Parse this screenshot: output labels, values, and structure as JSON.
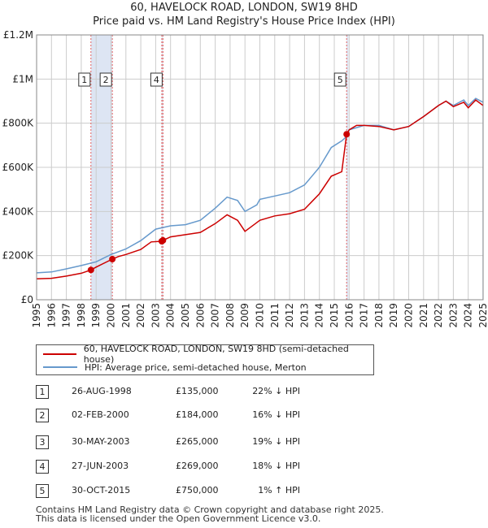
{
  "title_line1": "60, HAVELOCK ROAD, LONDON, SW19 8HD",
  "title_line2": "Price paid vs. HM Land Registry's House Price Index (HPI)",
  "colors": {
    "price": "#cc0000",
    "hpi": "#6699cc",
    "shade": "#dde5f3",
    "marker": "#cc0000",
    "vline": "#e06060"
  },
  "chart_data": {
    "type": "line",
    "x_range": [
      1995,
      2025
    ],
    "y_range": [
      0,
      1200000
    ],
    "y_ticks": [
      {
        "value": 0,
        "label": "£0"
      },
      {
        "value": 200000,
        "label": "£200K"
      },
      {
        "value": 400000,
        "label": "£400K"
      },
      {
        "value": 600000,
        "label": "£600K"
      },
      {
        "value": 800000,
        "label": "£800K"
      },
      {
        "value": 1000000,
        "label": "£1M"
      },
      {
        "value": 1200000,
        "label": "£1.2M"
      }
    ],
    "x_ticks": [
      "1995",
      "1996",
      "1997",
      "1998",
      "1999",
      "2000",
      "2001",
      "2002",
      "2003",
      "2004",
      "2005",
      "2006",
      "2007",
      "2008",
      "2009",
      "2010",
      "2011",
      "2012",
      "2013",
      "2014",
      "2015",
      "2016",
      "2017",
      "2018",
      "2019",
      "2020",
      "2021",
      "2022",
      "2023",
      "2024",
      "2025"
    ],
    "shaded_ranges": [
      [
        1998.65,
        2000.09
      ],
      [
        2003.41,
        2003.49
      ],
      [
        2015.83,
        2015.95
      ],
      [
        2024.95,
        2025.1
      ]
    ],
    "series": [
      {
        "name": "60, HAVELOCK ROAD, LONDON, SW19 8HD (semi-detached house)",
        "points": [
          [
            1995,
            95000
          ],
          [
            1996,
            97000
          ],
          [
            1997,
            107000
          ],
          [
            1998,
            120000
          ],
          [
            1998.65,
            135000
          ],
          [
            1999,
            148000
          ],
          [
            2000.09,
            184000
          ],
          [
            2000.5,
            196000
          ],
          [
            2001,
            205000
          ],
          [
            2002,
            228000
          ],
          [
            2002.7,
            262000
          ],
          [
            2003.41,
            265000
          ],
          [
            2003.49,
            269000
          ],
          [
            2004,
            285000
          ],
          [
            2005,
            295000
          ],
          [
            2006,
            305000
          ],
          [
            2007,
            345000
          ],
          [
            2007.8,
            385000
          ],
          [
            2008.5,
            360000
          ],
          [
            2009,
            310000
          ],
          [
            2009.7,
            345000
          ],
          [
            2010,
            360000
          ],
          [
            2011,
            380000
          ],
          [
            2012,
            390000
          ],
          [
            2013,
            410000
          ],
          [
            2014,
            480000
          ],
          [
            2014.8,
            560000
          ],
          [
            2015.5,
            580000
          ],
          [
            2015.83,
            750000
          ],
          [
            2016,
            770000
          ],
          [
            2016.5,
            790000
          ],
          [
            2017,
            790000
          ],
          [
            2018,
            785000
          ],
          [
            2019,
            770000
          ],
          [
            2020,
            785000
          ],
          [
            2021,
            830000
          ],
          [
            2022,
            880000
          ],
          [
            2022.5,
            900000
          ],
          [
            2023,
            875000
          ],
          [
            2023.7,
            895000
          ],
          [
            2024,
            870000
          ],
          [
            2024.5,
            905000
          ],
          [
            2025,
            880000
          ]
        ]
      },
      {
        "name": "HPI: Average price, semi-detached house, Merton",
        "points": [
          [
            1995,
            122000
          ],
          [
            1996,
            126000
          ],
          [
            1997,
            140000
          ],
          [
            1998,
            155000
          ],
          [
            1999,
            172000
          ],
          [
            2000,
            205000
          ],
          [
            2001,
            230000
          ],
          [
            2002,
            268000
          ],
          [
            2003,
            320000
          ],
          [
            2004,
            335000
          ],
          [
            2005,
            340000
          ],
          [
            2006,
            360000
          ],
          [
            2007,
            415000
          ],
          [
            2007.8,
            465000
          ],
          [
            2008.5,
            450000
          ],
          [
            2009,
            400000
          ],
          [
            2009.8,
            430000
          ],
          [
            2010,
            455000
          ],
          [
            2011,
            470000
          ],
          [
            2012,
            485000
          ],
          [
            2013,
            520000
          ],
          [
            2014,
            600000
          ],
          [
            2014.8,
            690000
          ],
          [
            2015.5,
            720000
          ],
          [
            2015.83,
            740000
          ],
          [
            2016,
            770000
          ],
          [
            2016.5,
            780000
          ],
          [
            2017,
            790000
          ],
          [
            2018,
            790000
          ],
          [
            2019,
            770000
          ],
          [
            2020,
            785000
          ],
          [
            2021,
            830000
          ],
          [
            2022,
            880000
          ],
          [
            2022.5,
            900000
          ],
          [
            2023,
            880000
          ],
          [
            2023.7,
            905000
          ],
          [
            2024,
            880000
          ],
          [
            2024.5,
            912000
          ],
          [
            2025,
            895000
          ]
        ]
      }
    ],
    "sales": [
      {
        "num": "1",
        "x": 1998.65,
        "value": 135000
      },
      {
        "num": "2",
        "x": 2000.09,
        "value": 184000
      },
      {
        "num": "3",
        "x": 2003.41,
        "value": 265000
      },
      {
        "num": "4",
        "x": 2003.49,
        "value": 269000
      },
      {
        "num": "5",
        "x": 2015.83,
        "value": 750000
      }
    ],
    "top_labels": [
      "1",
      "2",
      "4",
      "5"
    ]
  },
  "legend": {
    "price_label": "60, HAVELOCK ROAD, LONDON, SW19 8HD (semi-detached house)",
    "hpi_label": "HPI: Average price, semi-detached house, Merton"
  },
  "sales_table": [
    {
      "num": "1",
      "date": "26-AUG-1998",
      "price": "£135,000",
      "hpi": "22% ↓ HPI"
    },
    {
      "num": "2",
      "date": "02-FEB-2000",
      "price": "£184,000",
      "hpi": "16% ↓ HPI"
    },
    {
      "num": "3",
      "date": "30-MAY-2003",
      "price": "£265,000",
      "hpi": "19% ↓ HPI"
    },
    {
      "num": "4",
      "date": "27-JUN-2003",
      "price": "£269,000",
      "hpi": "18% ↓ HPI"
    },
    {
      "num": "5",
      "date": "30-OCT-2015",
      "price": "£750,000",
      "hpi": "1% ↑ HPI"
    }
  ],
  "footer": {
    "line1": "Contains HM Land Registry data © Crown copyright and database right 2025.",
    "line2": "This data is licensed under the Open Government Licence v3.0."
  }
}
